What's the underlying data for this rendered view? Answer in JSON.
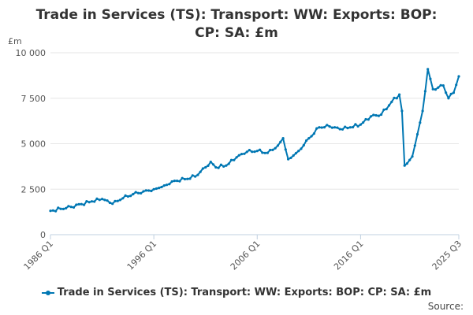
{
  "chart_data": {
    "type": "line",
    "title": "Trade in Services (TS): Transport: WW: Exports: BOP: CP: SA: £m",
    "ylabel": "£m",
    "xlabel": "",
    "x_tick_labels": [
      "1986 Q1",
      "1996 Q1",
      "2006 Q1",
      "2016 Q1",
      "2025 Q3"
    ],
    "y_tick_labels": [
      "0",
      "2 500",
      "5 000",
      "7 500",
      "10 000"
    ],
    "ylim": [
      0,
      10000
    ],
    "y_ticks": [
      0,
      2500,
      5000,
      7500,
      10000
    ],
    "x_range": [
      "1986 Q1",
      "2025 Q3"
    ],
    "x_ticks": [
      "1986 Q1",
      "1996 Q1",
      "2006 Q1",
      "2016 Q1",
      "2025 Q3"
    ],
    "grid": true,
    "legend_position": "bottom",
    "series": [
      {
        "name": "Trade in Services (TS): Transport: WW: Exports: BOP: CP: SA: £m",
        "color": "#0077b3",
        "points": [
          [
            "1986 Q1",
            1310
          ],
          [
            "1987 Q1",
            1420
          ],
          [
            "1988 Q1",
            1530
          ],
          [
            "1989 Q1",
            1680
          ],
          [
            "1990 Q1",
            1830
          ],
          [
            "1991 Q1",
            1960
          ],
          [
            "1992 Q1",
            1700
          ],
          [
            "1993 Q1",
            2000
          ],
          [
            "1994 Q1",
            2230
          ],
          [
            "1995 Q1",
            2380
          ],
          [
            "1996 Q1",
            2500
          ],
          [
            "1997 Q1",
            2700
          ],
          [
            "1998 Q1",
            2960
          ],
          [
            "1999 Q1",
            3050
          ],
          [
            "2000 Q1",
            3200
          ],
          [
            "2001 Q1",
            3700
          ],
          [
            "2001 Q3",
            4000
          ],
          [
            "2002 Q1",
            3700
          ],
          [
            "2003 Q1",
            3800
          ],
          [
            "2004 Q1",
            4250
          ],
          [
            "2005 Q1",
            4550
          ],
          [
            "2006 Q1",
            4600
          ],
          [
            "2007 Q1",
            4500
          ],
          [
            "2008 Q1",
            4900
          ],
          [
            "2008 Q3",
            5300
          ],
          [
            "2009 Q1",
            4150
          ],
          [
            "2010 Q1",
            4600
          ],
          [
            "2011 Q1",
            5300
          ],
          [
            "2012 Q1",
            5900
          ],
          [
            "2013 Q1",
            5950
          ],
          [
            "2014 Q1",
            5800
          ],
          [
            "2015 Q1",
            5900
          ],
          [
            "2016 Q1",
            6050
          ],
          [
            "2017 Q1",
            6500
          ],
          [
            "2018 Q1",
            6600
          ],
          [
            "2019 Q1",
            7300
          ],
          [
            "2019 Q4",
            7700
          ],
          [
            "2020 Q1",
            6800
          ],
          [
            "2020 Q2",
            3800
          ],
          [
            "2021 Q1",
            4300
          ],
          [
            "2022 Q1",
            6800
          ],
          [
            "2022 Q3",
            9100
          ],
          [
            "2023 Q1",
            8000
          ],
          [
            "2024 Q1",
            8200
          ],
          [
            "2024 Q3",
            7500
          ],
          [
            "2025 Q1",
            7800
          ],
          [
            "2025 Q3",
            8700
          ]
        ]
      }
    ]
  },
  "footer": {
    "source_label": "Source:"
  }
}
